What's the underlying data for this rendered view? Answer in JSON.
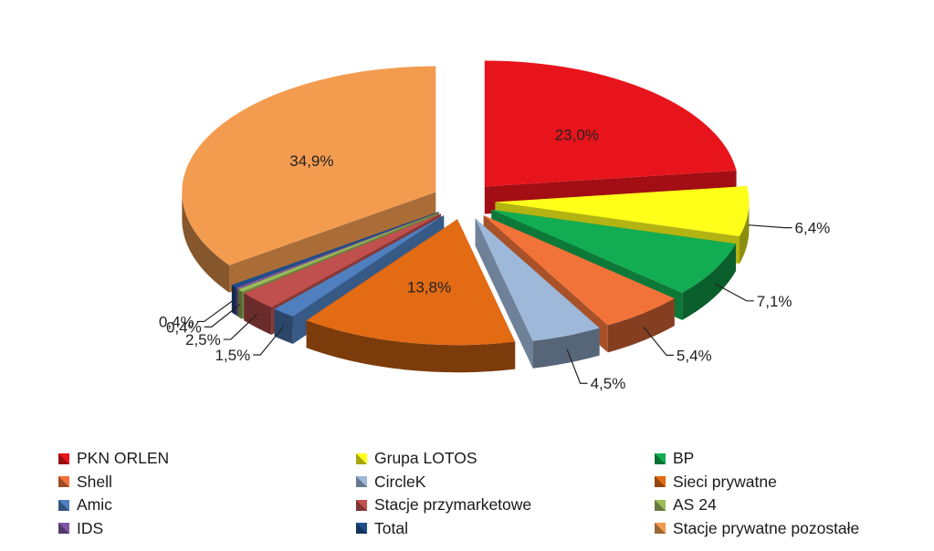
{
  "chart_data": {
    "type": "pie",
    "title": "",
    "unit": "%",
    "slices": [
      {
        "label": "PKN ORLEN",
        "value": 23.0,
        "display": "23,0%",
        "color": "#e8141b"
      },
      {
        "label": "Grupa LOTOS",
        "value": 6.4,
        "display": "6,4%",
        "color": "#ffff1a"
      },
      {
        "label": "BP",
        "value": 7.1,
        "display": "7,1%",
        "color": "#12ad52"
      },
      {
        "label": "Shell",
        "value": 5.4,
        "display": "5,4%",
        "color": "#f2733a"
      },
      {
        "label": "CircleK",
        "value": 4.5,
        "display": "4,5%",
        "color": "#9db8d9"
      },
      {
        "label": "Sieci prywatne",
        "value": 13.8,
        "display": "13,8%",
        "color": "#e26b14"
      },
      {
        "label": "Amic",
        "value": 1.5,
        "display": "1,5%",
        "color": "#4f7fbf"
      },
      {
        "label": "Stacje przymarketowe",
        "value": 2.5,
        "display": "2,5%",
        "color": "#c0504d"
      },
      {
        "label": "AS 24",
        "value": 0.4,
        "display": "0,4%",
        "color": "#9bbb59"
      },
      {
        "label": "IDS",
        "value": 0.2,
        "display": "",
        "color": "#7f5aa2"
      },
      {
        "label": "Total",
        "value": 0.4,
        "display": "0,4%",
        "color": "#1f4e8c"
      },
      {
        "label": "Stacje prywatne pozostałe",
        "value": 34.9,
        "display": "34,9%",
        "color": "#f39c50"
      }
    ],
    "legend_position": "bottom",
    "legend": [
      [
        "PKN ORLEN",
        "Grupa LOTOS",
        "BP"
      ],
      [
        "Shell",
        "CircleK",
        "Sieci prywatne"
      ],
      [
        "Amic",
        "Stacje przymarketowe",
        "AS 24"
      ],
      [
        "IDS",
        "Total",
        "Stacje prywatne pozostałe"
      ]
    ]
  }
}
